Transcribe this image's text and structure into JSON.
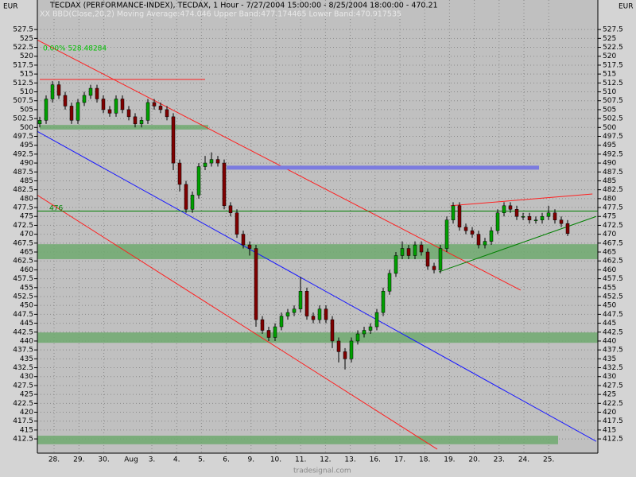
{
  "chart_data": {
    "type": "candlestick",
    "title": "TECDAX (PERFORMANCE-INDEX), TECDAX, 1 Hour - 7/27/2004 15:00:00 - 8/25/2004 18:00:00 - 470.21",
    "subtitle": "XX BBD(Close,20,2) Moving Average:474.046 Upper Band:477.174465 Lower Band:470.917535",
    "corner_label": "0.00% 528.48284",
    "currency": "EUR",
    "level_label": "476",
    "footer": "tradesignal.com",
    "categories": [
      "28.",
      "29.",
      "30.",
      "3.",
      "4.",
      "5.",
      "6.",
      "9.",
      "10.",
      "11.",
      "12.",
      "13.",
      "16.",
      "17.",
      "18.",
      "19.",
      "20.",
      "23.",
      "24.",
      "25."
    ],
    "month_label": "Aug",
    "up_color": "#00a000",
    "down_color": "#800000",
    "ylim": [
      408.5,
      535.8
    ],
    "yticks": [
      412.5,
      415,
      417.5,
      420,
      422.5,
      425,
      427.5,
      430,
      432.5,
      435,
      437.5,
      440,
      442.5,
      445,
      447.5,
      450,
      452.5,
      455,
      457.5,
      460,
      462.5,
      465,
      467.5,
      470,
      472.5,
      475,
      477.5,
      480,
      482.5,
      485,
      487.5,
      490,
      492.5,
      495,
      497.5,
      500,
      502.5,
      505,
      507.5,
      510,
      512.5,
      515,
      517.5,
      520,
      522.5,
      525,
      527.5
    ],
    "grid": true,
    "ohlc": [
      [
        501,
        503,
        500,
        502
      ],
      [
        502,
        509,
        501,
        508
      ],
      [
        508,
        513,
        507,
        512
      ],
      [
        512,
        513,
        508,
        509
      ],
      [
        509,
        510,
        505,
        506
      ],
      [
        506,
        507,
        501,
        502
      ],
      [
        502,
        508,
        501,
        507
      ],
      [
        507,
        510,
        506,
        509
      ],
      [
        509,
        512,
        508,
        511
      ],
      [
        511,
        512,
        507,
        508
      ],
      [
        508,
        509,
        504,
        505
      ],
      [
        505,
        506,
        503,
        504
      ],
      [
        504,
        509,
        503,
        508
      ],
      [
        508,
        509,
        504,
        505
      ],
      [
        505,
        506,
        502,
        503
      ],
      [
        503,
        504,
        500,
        501
      ],
      [
        501,
        503,
        500,
        502
      ],
      [
        502,
        508,
        501,
        507
      ],
      [
        507,
        508,
        505,
        506
      ],
      [
        506,
        507,
        504,
        505
      ],
      [
        505,
        506,
        502,
        503
      ],
      [
        503,
        504,
        488,
        490
      ],
      [
        490,
        491,
        482,
        484
      ],
      [
        484,
        485,
        476,
        477
      ],
      [
        477,
        482,
        476,
        481
      ],
      [
        481,
        490,
        480,
        489
      ],
      [
        489,
        492,
        488,
        490
      ],
      [
        490,
        493,
        489,
        491
      ],
      [
        491,
        492,
        489,
        490
      ],
      [
        490,
        491,
        477,
        478
      ],
      [
        478,
        479,
        475,
        476
      ],
      [
        476,
        477,
        469,
        470
      ],
      [
        470,
        471,
        466,
        467
      ],
      [
        467,
        468,
        464,
        466
      ],
      [
        466,
        467,
        444,
        446
      ],
      [
        446,
        447,
        442,
        443
      ],
      [
        443,
        444,
        440,
        441
      ],
      [
        441,
        445,
        440,
        444
      ],
      [
        444,
        448,
        443,
        447
      ],
      [
        447,
        449,
        446,
        448
      ],
      [
        448,
        450,
        447,
        449
      ],
      [
        449,
        458,
        448,
        454
      ],
      [
        454,
        455,
        446,
        447
      ],
      [
        447,
        448,
        445,
        446
      ],
      [
        446,
        450,
        445,
        449
      ],
      [
        449,
        450,
        445,
        446
      ],
      [
        446,
        447,
        438,
        440
      ],
      [
        440,
        441,
        434,
        437
      ],
      [
        437,
        438,
        432,
        435
      ],
      [
        435,
        441,
        434,
        440
      ],
      [
        440,
        443,
        439,
        442
      ],
      [
        442,
        444,
        441,
        443
      ],
      [
        443,
        445,
        442,
        444
      ],
      [
        444,
        449,
        443,
        448
      ],
      [
        448,
        455,
        447,
        454
      ],
      [
        454,
        460,
        453,
        459
      ],
      [
        459,
        465,
        458,
        464
      ],
      [
        464,
        468,
        463,
        466
      ],
      [
        466,
        467,
        463,
        464
      ],
      [
        464,
        468,
        463,
        467
      ],
      [
        467,
        468,
        464,
        465
      ],
      [
        465,
        466,
        460,
        461
      ],
      [
        461,
        462,
        459,
        460
      ],
      [
        460,
        467,
        459,
        466
      ],
      [
        466,
        475,
        465,
        474
      ],
      [
        474,
        479,
        473,
        478
      ],
      [
        478,
        479,
        471,
        472
      ],
      [
        472,
        473,
        470,
        471
      ],
      [
        471,
        472,
        469,
        470
      ],
      [
        470,
        471,
        466,
        467
      ],
      [
        467,
        469,
        466,
        468
      ],
      [
        468,
        472,
        467,
        471
      ],
      [
        471,
        477,
        470,
        476
      ],
      [
        476,
        479,
        475,
        478
      ],
      [
        478,
        479,
        476,
        477
      ],
      [
        477,
        478,
        474,
        475
      ],
      [
        475,
        476,
        474,
        475
      ],
      [
        475,
        476,
        473,
        474
      ],
      [
        474,
        475,
        473,
        474
      ],
      [
        474,
        476,
        473,
        475
      ],
      [
        475,
        478,
        474,
        476
      ],
      [
        476,
        477,
        473,
        474
      ],
      [
        474,
        475,
        472,
        473
      ],
      [
        473,
        474,
        469.5,
        470.21
      ]
    ],
    "zones": [
      {
        "color": "#6fa96f",
        "from": -0.4,
        "to": 87.75,
        "low": 463.0,
        "high": 467.2
      },
      {
        "color": "#6fa96f",
        "from": -0.4,
        "to": 87.75,
        "low": 439.5,
        "high": 442.4
      },
      {
        "color": "#6fa96f",
        "from": -0.4,
        "to": 81.5,
        "low": 411.0,
        "high": 413.4
      },
      {
        "color": "#6fa96f",
        "from": 0,
        "to": 26.5,
        "low": 499.4,
        "high": 500.7
      }
    ],
    "lines": [
      {
        "color": "#ff2020",
        "width": 1,
        "points": [
          [
            0,
            513.5
          ],
          [
            26,
            513.5
          ]
        ]
      },
      {
        "color": "#ff2020",
        "width": 1,
        "points": [
          [
            -0.4,
            524.6
          ],
          [
            75.6,
            454.3
          ]
        ]
      },
      {
        "color": "#ff2020",
        "width": 1,
        "points": [
          [
            -0.4,
            481
          ],
          [
            62.5,
            409.6
          ]
        ]
      },
      {
        "color": "#1a1aff",
        "width": 1,
        "points": [
          [
            -0.4,
            498.9
          ],
          [
            87.5,
            411.8
          ]
        ]
      },
      {
        "color": "#008000",
        "width": 1,
        "points": [
          [
            -0.4,
            476.5
          ],
          [
            87.75,
            476.5
          ]
        ]
      },
      {
        "color": "#7b7bdf",
        "width": 5,
        "points": [
          [
            29.4,
            488.7
          ],
          [
            78.5,
            488.7
          ]
        ]
      },
      {
        "color": "#008000",
        "width": 1,
        "points": [
          [
            62.75,
            459.4
          ],
          [
            87.5,
            475
          ]
        ]
      },
      {
        "color": "#ff2020",
        "width": 1,
        "points": [
          [
            64.6,
            478
          ],
          [
            86.9,
            481.3
          ]
        ]
      }
    ]
  }
}
